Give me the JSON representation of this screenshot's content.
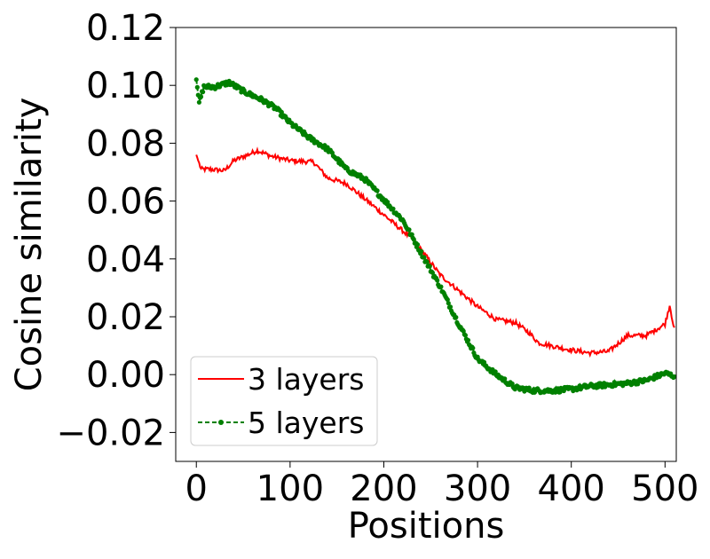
{
  "chart_data": {
    "type": "line",
    "xlabel": "Positions",
    "ylabel": "Cosine similarity",
    "xlim": [
      -22,
      512
    ],
    "ylim": [
      -0.03,
      0.12
    ],
    "xticks": [
      0,
      100,
      200,
      300,
      400,
      500
    ],
    "yticks": [
      -0.02,
      0.0,
      0.02,
      0.04,
      0.06,
      0.08,
      0.1,
      0.12
    ],
    "xtick_labels": [
      "0",
      "100",
      "200",
      "300",
      "400",
      "500"
    ],
    "ytick_labels": [
      "−0.02",
      "0.00",
      "0.02",
      "0.04",
      "0.06",
      "0.08",
      "0.10",
      "0.12"
    ],
    "grid": false,
    "legend_position": "lower-left",
    "series": [
      {
        "name": "3 layers",
        "color": "#ff0000",
        "style": "solid",
        "points": [
          [
            0,
            0.076
          ],
          [
            5,
            0.071
          ],
          [
            15,
            0.071
          ],
          [
            30,
            0.0705
          ],
          [
            40,
            0.074
          ],
          [
            55,
            0.076
          ],
          [
            65,
            0.0775
          ],
          [
            80,
            0.0755
          ],
          [
            100,
            0.074
          ],
          [
            125,
            0.0735
          ],
          [
            140,
            0.068
          ],
          [
            160,
            0.066
          ],
          [
            175,
            0.062
          ],
          [
            190,
            0.058
          ],
          [
            210,
            0.0525
          ],
          [
            230,
            0.047
          ],
          [
            245,
            0.041
          ],
          [
            260,
            0.0345
          ],
          [
            280,
            0.029
          ],
          [
            300,
            0.0235
          ],
          [
            320,
            0.019
          ],
          [
            340,
            0.018
          ],
          [
            355,
            0.0145
          ],
          [
            365,
            0.011
          ],
          [
            385,
            0.0095
          ],
          [
            400,
            0.0085
          ],
          [
            420,
            0.0075
          ],
          [
            440,
            0.008
          ],
          [
            460,
            0.0135
          ],
          [
            480,
            0.0135
          ],
          [
            500,
            0.0175
          ],
          [
            505,
            0.024
          ],
          [
            510,
            0.0155
          ]
        ]
      },
      {
        "name": "5 layers",
        "color": "#008000",
        "style": "dashed-dot-marker",
        "points": [
          [
            0,
            0.102
          ],
          [
            3,
            0.094
          ],
          [
            8,
            0.0995
          ],
          [
            20,
            0.0995
          ],
          [
            35,
            0.101
          ],
          [
            50,
            0.098
          ],
          [
            70,
            0.095
          ],
          [
            85,
            0.092
          ],
          [
            100,
            0.087
          ],
          [
            120,
            0.082
          ],
          [
            140,
            0.078
          ],
          [
            160,
            0.071
          ],
          [
            180,
            0.0675
          ],
          [
            200,
            0.0605
          ],
          [
            220,
            0.0535
          ],
          [
            240,
            0.042
          ],
          [
            260,
            0.0305
          ],
          [
            280,
            0.0175
          ],
          [
            300,
            0.0055
          ],
          [
            320,
            0.0
          ],
          [
            340,
            -0.0045
          ],
          [
            360,
            -0.0055
          ],
          [
            380,
            -0.0055
          ],
          [
            400,
            -0.005
          ],
          [
            420,
            -0.004
          ],
          [
            440,
            -0.0035
          ],
          [
            460,
            -0.003
          ],
          [
            480,
            -0.002
          ],
          [
            500,
            0.0005
          ],
          [
            510,
            -0.0005
          ]
        ]
      }
    ]
  }
}
